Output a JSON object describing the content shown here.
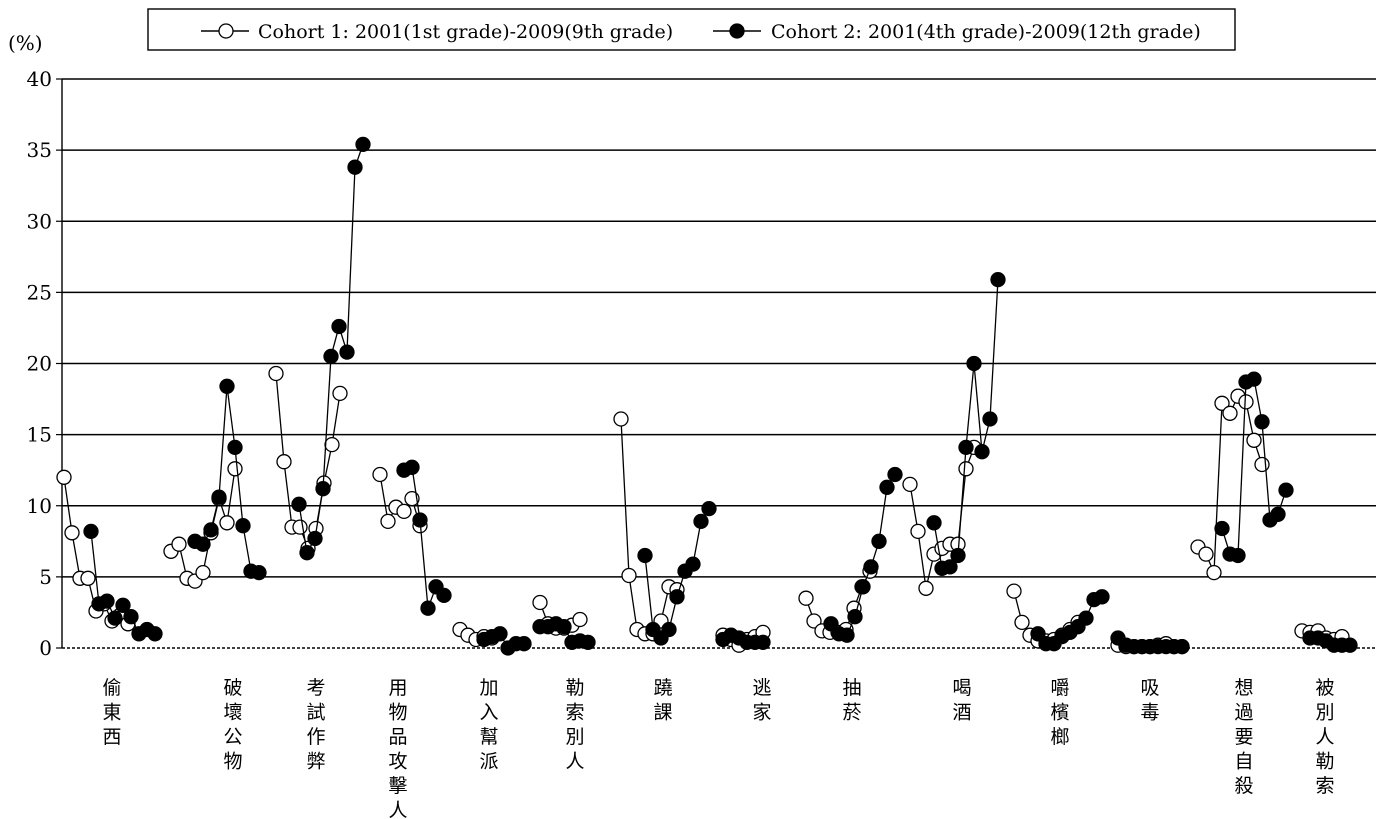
{
  "chart_data": {
    "type": "line",
    "ylabel": "(%)",
    "ylim": [
      0,
      40
    ],
    "yticks": [
      0,
      5,
      10,
      15,
      20,
      25,
      30,
      35,
      40
    ],
    "grid": true,
    "legend_position": "top",
    "categories": [
      "偷東西",
      "破壞公物",
      "考試作弊",
      "用物品攻擊人",
      "加入幫派",
      "勒索別人",
      "蹺課",
      "逃家",
      "抽菸",
      "喝酒",
      "嚼檳榔",
      "吸毒",
      "想過要自殺",
      "被別人勒索"
    ],
    "series": [
      {
        "name": "Cohort 1: 2001(1st grade)-2009(9th grade)",
        "marker": "open-circle",
        "values": [
          [
            12.0,
            8.1,
            4.9,
            4.9,
            2.6,
            3.1,
            1.9,
            2.3,
            1.7
          ],
          [
            6.8,
            7.3,
            4.9,
            4.7,
            5.3,
            8.1,
            10.5,
            8.8,
            12.6
          ],
          [
            19.3,
            13.1,
            8.5,
            8.5,
            7.0,
            8.4,
            11.6,
            14.3,
            17.9
          ],
          [
            12.2,
            8.9,
            9.9,
            9.6,
            10.5,
            8.6
          ],
          [
            1.3,
            0.9,
            0.6,
            0.8,
            0.7
          ],
          [
            3.2,
            1.7,
            1.4,
            1.4,
            1.6,
            2.0
          ],
          [
            16.1,
            5.1,
            1.3,
            1.0,
            1.0,
            1.9,
            4.3,
            4.1
          ],
          [
            0.9,
            0.6,
            0.2,
            0.6,
            0.8,
            1.1
          ],
          [
            3.5,
            1.9,
            1.2,
            1.1,
            1.1,
            1.3,
            2.8,
            4.3,
            5.4
          ],
          [
            11.5,
            8.2,
            4.2,
            6.6,
            7.0,
            7.3,
            7.3,
            12.6,
            14.1
          ],
          [
            4.0,
            1.8,
            0.9,
            0.5,
            0.5,
            0.6,
            0.9,
            1.3,
            1.8
          ],
          [
            0.2,
            0.1,
            0.1,
            0.1,
            0.1,
            0.2,
            0.3,
            0.1,
            0.1
          ],
          [
            7.1,
            6.6,
            5.3,
            17.2,
            16.5,
            17.7,
            17.3,
            14.6,
            12.9
          ],
          [
            1.2,
            1.1,
            1.2,
            0.7,
            0.6,
            0.8
          ]
        ]
      },
      {
        "name": "Cohort 2: 2001(4th grade)-2009(12th grade)",
        "marker": "filled-circle",
        "values": [
          [
            8.2,
            3.1,
            3.3,
            2.1,
            3.0,
            2.2,
            1.0,
            1.3,
            1.0
          ],
          [
            7.5,
            7.3,
            8.3,
            10.6,
            18.4,
            14.1,
            8.6,
            5.4,
            5.3
          ],
          [
            10.1,
            6.7,
            7.7,
            11.2,
            20.5,
            22.6,
            20.8,
            33.8,
            35.4
          ],
          [
            12.5,
            12.7,
            9.0,
            2.8,
            4.3,
            3.7
          ],
          [
            0.6,
            0.8,
            1.0,
            0.0,
            0.3,
            0.3
          ],
          [
            1.5,
            1.5,
            1.7,
            1.5,
            0.4,
            0.5,
            0.4
          ],
          [
            6.5,
            1.3,
            0.7,
            1.3,
            3.6,
            5.4,
            5.9,
            8.9,
            9.8
          ],
          [
            0.6,
            0.9,
            0.7,
            0.4,
            0.4,
            0.4
          ],
          [
            1.7,
            1.0,
            0.9,
            2.2,
            4.3,
            5.7,
            7.5,
            11.3,
            12.2
          ],
          [
            8.8,
            5.6,
            5.7,
            6.5,
            14.1,
            20.0,
            13.8,
            16.1,
            25.9
          ],
          [
            1.0,
            0.3,
            0.3,
            0.8,
            1.1,
            1.5,
            2.1,
            3.4,
            3.6
          ],
          [
            0.7,
            0.2,
            0.1,
            0.1,
            0.1,
            0.1,
            0.1,
            0.1,
            0.1
          ],
          [
            8.4,
            6.6,
            6.5,
            18.7,
            18.9,
            15.9,
            9.0,
            9.4,
            11.1
          ],
          [
            0.7,
            0.7,
            0.5,
            0.2,
            0.2,
            0.2
          ]
        ]
      }
    ]
  }
}
